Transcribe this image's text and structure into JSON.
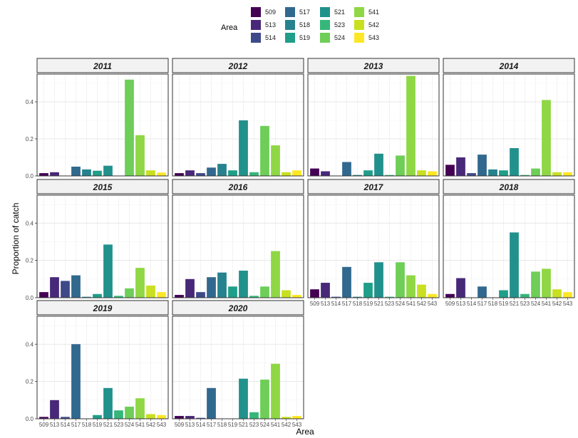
{
  "chart_data": {
    "type": "bar",
    "facet_by": "year",
    "xlabel": "Area",
    "ylabel": "Proportion of catch",
    "ylim": [
      0,
      0.55
    ],
    "yticks": [
      0.0,
      0.2,
      0.4
    ],
    "ytick_labels": [
      "0.0",
      "0.2",
      "0.4"
    ],
    "grid": true,
    "legend": {
      "title": "Area",
      "placement": "top"
    },
    "categories": [
      "509",
      "513",
      "514",
      "517",
      "518",
      "519",
      "521",
      "523",
      "524",
      "541",
      "542",
      "543"
    ],
    "x_tick_labels": [
      "509",
      "513",
      "514",
      "517",
      "518",
      "519",
      "521",
      "523",
      "524",
      "541",
      "542",
      "543"
    ],
    "colors": [
      "#440154",
      "#482878",
      "#3e4989",
      "#31688e",
      "#26828e",
      "#1f9e89",
      "#21918c",
      "#35b779",
      "#6ece58",
      "#8fd744",
      "#c8e020",
      "#fde725"
    ],
    "panels": [
      {
        "title": "2011",
        "values": [
          0.015,
          0.02,
          0.0,
          0.05,
          0.035,
          0.028,
          0.055,
          0.0,
          0.52,
          0.22,
          0.03,
          0.018
        ]
      },
      {
        "title": "2012",
        "values": [
          0.015,
          0.03,
          0.015,
          0.045,
          0.065,
          0.03,
          0.3,
          0.02,
          0.27,
          0.165,
          0.02,
          0.03
        ]
      },
      {
        "title": "2013",
        "values": [
          0.04,
          0.025,
          0.0,
          0.075,
          0.005,
          0.03,
          0.12,
          0.005,
          0.11,
          0.54,
          0.03,
          0.025
        ]
      },
      {
        "title": "2014",
        "values": [
          0.06,
          0.1,
          0.015,
          0.115,
          0.035,
          0.03,
          0.15,
          0.005,
          0.04,
          0.41,
          0.02,
          0.02
        ]
      },
      {
        "title": "2015",
        "values": [
          0.03,
          0.11,
          0.09,
          0.12,
          0.005,
          0.02,
          0.285,
          0.01,
          0.05,
          0.16,
          0.065,
          0.03
        ]
      },
      {
        "title": "2016",
        "values": [
          0.015,
          0.1,
          0.03,
          0.11,
          0.135,
          0.06,
          0.145,
          0.01,
          0.06,
          0.25,
          0.04,
          0.015
        ]
      },
      {
        "title": "2017",
        "values": [
          0.045,
          0.08,
          0.005,
          0.165,
          0.005,
          0.08,
          0.19,
          0.005,
          0.19,
          0.12,
          0.07,
          0.02
        ]
      },
      {
        "title": "2018",
        "values": [
          0.02,
          0.105,
          0.0,
          0.06,
          0.0,
          0.04,
          0.35,
          0.02,
          0.14,
          0.155,
          0.045,
          0.03
        ]
      },
      {
        "title": "2019",
        "values": [
          0.01,
          0.1,
          0.01,
          0.4,
          0.0,
          0.02,
          0.165,
          0.045,
          0.065,
          0.11,
          0.025,
          0.02
        ]
      },
      {
        "title": "2020",
        "values": [
          0.015,
          0.015,
          0.005,
          0.165,
          0.0,
          0.0,
          0.215,
          0.035,
          0.21,
          0.295,
          0.01,
          0.015
        ]
      }
    ]
  }
}
